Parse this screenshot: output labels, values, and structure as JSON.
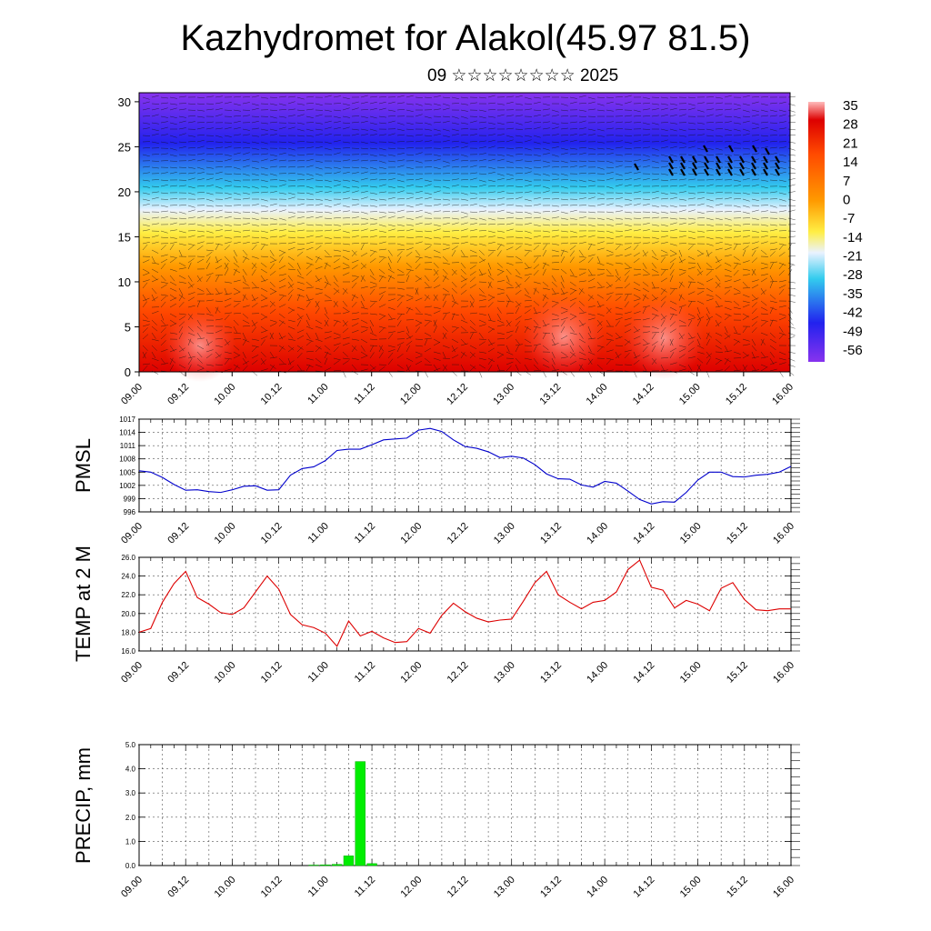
{
  "header": {
    "title": "Kazhydromet for Alakol(45.97 81.5)",
    "subtitle": "09 ☆☆☆☆☆☆☆☆ 2025"
  },
  "chart_data": [
    {
      "id": "cross-section",
      "type": "heatmap",
      "description_free": true,
      "ylim": [
        0,
        31
      ],
      "yticks": [
        "0",
        "5",
        "10",
        "15",
        "20",
        "25",
        "30"
      ],
      "xticks": [
        "09.00",
        "09.12",
        "10.00",
        "10.12",
        "11.00",
        "11.12",
        "12.00",
        "12.12",
        "13.00",
        "13.12",
        "14.00",
        "14.12",
        "15.00",
        "15.12",
        "16.00"
      ],
      "colorbar": {
        "labels": [
          "35",
          "28",
          "21",
          "14",
          "7",
          "0",
          "-7",
          "-14",
          "-21",
          "-28",
          "-35",
          "-42",
          "-49",
          "-56"
        ],
        "min": -60,
        "max": 38
      },
      "colors": {
        "hot": "#dd0000",
        "warm": "#ff4a00",
        "orange": "#ff9a00",
        "yellow": "#ffee44",
        "cyan": "#33ccee",
        "blue": "#2222ee",
        "violet": "#8833ee"
      }
    },
    {
      "id": "pmsl",
      "type": "line",
      "ylabel": "PMSL",
      "ylim": [
        996,
        1017
      ],
      "yticks": [
        "996",
        "999",
        "1002",
        "1005",
        "1008",
        "1011",
        "1014",
        "1017"
      ],
      "xticks": [
        "09.00",
        "09.12",
        "10.00",
        "10.12",
        "11.00",
        "11.12",
        "12.00",
        "12.12",
        "13.00",
        "13.12",
        "14.00",
        "14.12",
        "15.00",
        "15.12",
        "16.00"
      ],
      "line_color": "#0000cc",
      "x_hours": [
        0,
        3,
        6,
        9,
        12,
        15,
        18,
        21,
        24,
        27,
        30,
        33,
        36,
        39,
        42,
        45,
        48,
        51,
        54,
        57,
        60,
        63,
        66,
        69,
        72,
        75,
        78,
        81,
        84,
        87,
        90,
        93,
        96,
        99,
        102,
        105,
        108,
        111,
        114,
        117,
        120,
        123,
        126,
        129,
        132,
        135,
        138,
        141,
        144,
        147,
        150,
        153,
        156,
        159,
        162,
        165,
        168
      ],
      "values": [
        1005.3,
        1005.0,
        1003.8,
        1002.2,
        1000.9,
        1001.0,
        1000.6,
        1000.4,
        1001.0,
        1001.8,
        1001.9,
        1000.9,
        1001.0,
        1004.3,
        1005.8,
        1006.2,
        1007.6,
        1009.9,
        1010.2,
        1010.2,
        1011.2,
        1012.3,
        1012.5,
        1012.7,
        1014.5,
        1014.9,
        1014.2,
        1012.3,
        1010.8,
        1010.4,
        1009.6,
        1008.3,
        1008.6,
        1008.2,
        1006.7,
        1004.6,
        1003.5,
        1003.4,
        1002.1,
        1001.6,
        1002.9,
        1002.5,
        1000.7,
        998.8,
        997.8,
        998.3,
        998.2,
        1000.4,
        1003.2,
        1005.0,
        1005.0,
        1004.0,
        1003.9,
        1004.3,
        1004.5,
        1005.0,
        1006.3
      ]
    },
    {
      "id": "temp2m",
      "type": "line",
      "ylabel": "TEMP at 2 M",
      "ylim": [
        16,
        26
      ],
      "yticks": [
        "16.0",
        "18.0",
        "20.0",
        "22.0",
        "24.0",
        "26.0"
      ],
      "xticks": [
        "09.00",
        "09.12",
        "10.00",
        "10.12",
        "11.00",
        "11.12",
        "12.00",
        "12.12",
        "13.00",
        "13.12",
        "14.00",
        "14.12",
        "15.00",
        "15.12",
        "16.00"
      ],
      "line_color": "#dd0000",
      "x_hours": [
        0,
        3,
        6,
        9,
        12,
        15,
        18,
        21,
        24,
        27,
        30,
        33,
        36,
        39,
        42,
        45,
        48,
        51,
        54,
        57,
        60,
        63,
        66,
        69,
        72,
        75,
        78,
        81,
        84,
        87,
        90,
        93,
        96,
        99,
        102,
        105,
        108,
        111,
        114,
        117,
        120,
        123,
        126,
        129,
        132,
        135,
        138,
        141,
        144,
        147,
        150,
        153,
        156,
        159,
        162,
        165,
        168
      ],
      "values": [
        18.0,
        18.4,
        21.2,
        23.2,
        24.5,
        21.7,
        21.0,
        20.1,
        19.9,
        20.6,
        22.3,
        24.0,
        22.6,
        19.9,
        18.8,
        18.5,
        17.9,
        16.5,
        19.2,
        17.6,
        18.1,
        17.4,
        16.9,
        17.0,
        18.4,
        17.9,
        19.8,
        21.1,
        20.2,
        19.5,
        19.1,
        19.3,
        19.4,
        21.3,
        23.3,
        24.5,
        22.0,
        21.2,
        20.5,
        21.2,
        21.4,
        22.3,
        24.7,
        25.7,
        22.8,
        22.5,
        20.6,
        21.4,
        21.0,
        20.3,
        22.7,
        23.3,
        21.5,
        20.4,
        20.3,
        20.5,
        20.5
      ]
    },
    {
      "id": "precip",
      "type": "bar",
      "ylabel": "PRECIP, mm",
      "ylim": [
        0,
        5
      ],
      "yticks": [
        "0.0",
        "1.0",
        "2.0",
        "3.0",
        "4.0",
        "5.0"
      ],
      "xticks": [
        "09.00",
        "09.12",
        "10.00",
        "10.12",
        "11.00",
        "11.12",
        "12.00",
        "12.12",
        "13.00",
        "13.12",
        "14.00",
        "14.12",
        "15.00",
        "15.12",
        "16.00"
      ],
      "bar_color": "#00ee00",
      "x_hours": [
        45,
        48,
        51,
        54,
        57,
        60
      ],
      "values": [
        0.02,
        0.03,
        0.05,
        0.4,
        4.3,
        0.08
      ]
    }
  ]
}
